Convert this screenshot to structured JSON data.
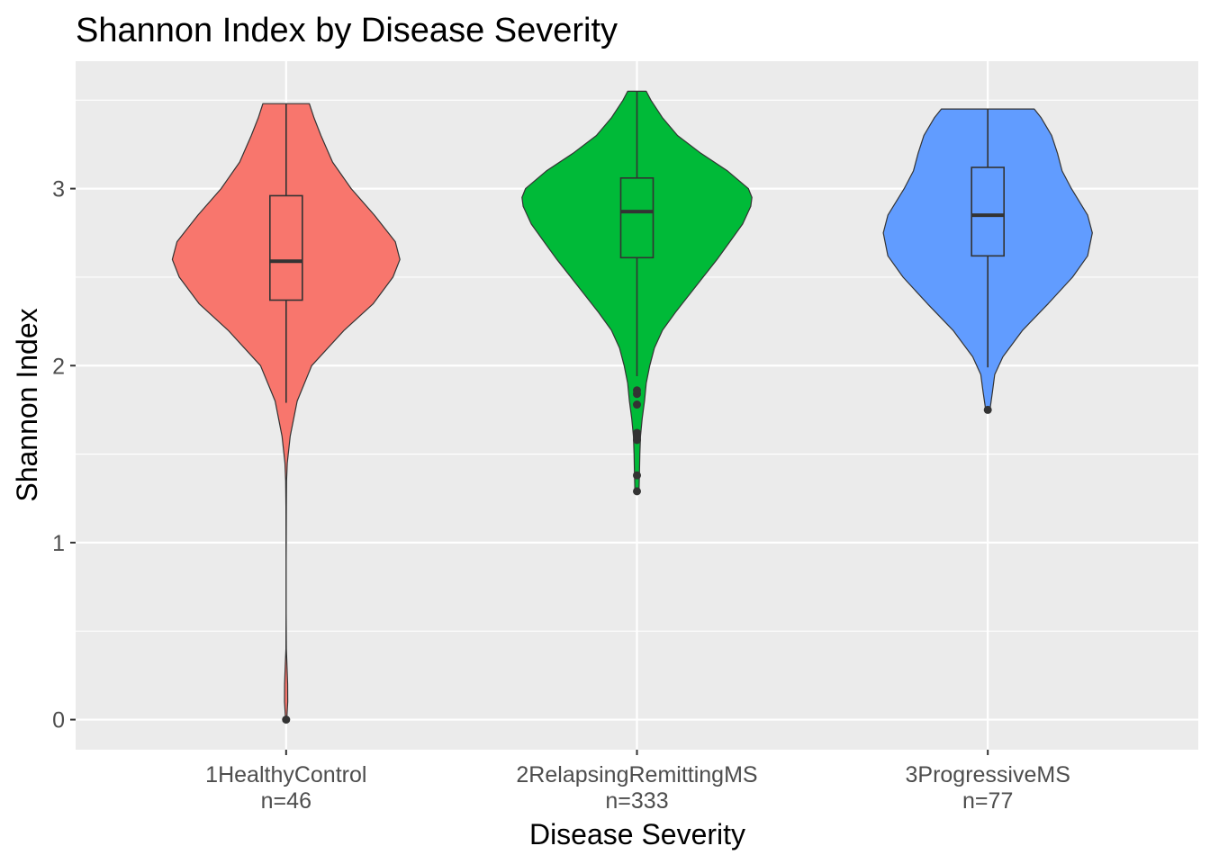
{
  "chart_data": {
    "type": "violin",
    "title": "Shannon Index by Disease Severity",
    "xlabel": "Disease Severity",
    "ylabel": "Shannon Index",
    "ylim": [
      -0.17,
      3.72
    ],
    "yticks": [
      0,
      1,
      2,
      3
    ],
    "grid": true,
    "legend": "none",
    "categories": [
      {
        "label": "1HealthyControl",
        "count_label": "n=46",
        "color": "#F8766D",
        "min": 0.0,
        "max": 3.48,
        "box": {
          "q1": 2.37,
          "median": 2.59,
          "q3": 2.96,
          "lower_whisker": 1.79,
          "upper_whisker": 3.48
        },
        "outliers": [
          0.0
        ],
        "density": [
          [
            0.0,
            0.005
          ],
          [
            0.1,
            0.014
          ],
          [
            0.2,
            0.013
          ],
          [
            0.3,
            0.008
          ],
          [
            0.4,
            0.002
          ],
          [
            0.6,
            0.001
          ],
          [
            0.9,
            0.001
          ],
          [
            1.2,
            0.002
          ],
          [
            1.35,
            0.004
          ],
          [
            1.45,
            0.01
          ],
          [
            1.6,
            0.035
          ],
          [
            1.8,
            0.095
          ],
          [
            2.0,
            0.22
          ],
          [
            2.2,
            0.5
          ],
          [
            2.35,
            0.75
          ],
          [
            2.5,
            0.92
          ],
          [
            2.6,
            0.98
          ],
          [
            2.7,
            0.94
          ],
          [
            2.85,
            0.76
          ],
          [
            3.0,
            0.56
          ],
          [
            3.15,
            0.4
          ],
          [
            3.3,
            0.3
          ],
          [
            3.4,
            0.24
          ],
          [
            3.48,
            0.2
          ]
        ]
      },
      {
        "label": "2RelapsingRemittingMS",
        "count_label": "n=333",
        "color": "#00BA38",
        "min": 1.29,
        "max": 3.55,
        "box": {
          "q1": 2.61,
          "median": 2.87,
          "q3": 3.06,
          "lower_whisker": 1.94,
          "upper_whisker": 3.55
        },
        "outliers": [
          1.29,
          1.38,
          1.58,
          1.6,
          1.62,
          1.78,
          1.84,
          1.86
        ],
        "density": [
          [
            1.29,
            0.018
          ],
          [
            1.4,
            0.022
          ],
          [
            1.5,
            0.025
          ],
          [
            1.6,
            0.03
          ],
          [
            1.7,
            0.045
          ],
          [
            1.8,
            0.065
          ],
          [
            1.9,
            0.08
          ],
          [
            2.0,
            0.11
          ],
          [
            2.1,
            0.15
          ],
          [
            2.2,
            0.22
          ],
          [
            2.3,
            0.33
          ],
          [
            2.4,
            0.45
          ],
          [
            2.5,
            0.57
          ],
          [
            2.6,
            0.69
          ],
          [
            2.7,
            0.8
          ],
          [
            2.8,
            0.91
          ],
          [
            2.9,
            0.98
          ],
          [
            2.95,
            0.99
          ],
          [
            3.0,
            0.96
          ],
          [
            3.1,
            0.78
          ],
          [
            3.2,
            0.55
          ],
          [
            3.3,
            0.35
          ],
          [
            3.4,
            0.22
          ],
          [
            3.5,
            0.12
          ],
          [
            3.55,
            0.08
          ]
        ]
      },
      {
        "label": "3ProgressiveMS",
        "count_label": "n=77",
        "color": "#619CFF",
        "min": 1.75,
        "max": 3.45,
        "box": {
          "q1": 2.62,
          "median": 2.85,
          "q3": 3.12,
          "lower_whisker": 1.99,
          "upper_whisker": 3.45
        },
        "outliers": [
          1.75
        ],
        "density": [
          [
            1.75,
            0.018
          ],
          [
            1.78,
            0.025
          ],
          [
            1.85,
            0.04
          ],
          [
            1.95,
            0.06
          ],
          [
            2.05,
            0.13
          ],
          [
            2.2,
            0.3
          ],
          [
            2.35,
            0.52
          ],
          [
            2.5,
            0.73
          ],
          [
            2.62,
            0.86
          ],
          [
            2.75,
            0.9
          ],
          [
            2.85,
            0.86
          ],
          [
            3.0,
            0.72
          ],
          [
            3.1,
            0.64
          ],
          [
            3.2,
            0.6
          ],
          [
            3.3,
            0.55
          ],
          [
            3.4,
            0.46
          ],
          [
            3.45,
            0.4
          ]
        ]
      }
    ]
  }
}
